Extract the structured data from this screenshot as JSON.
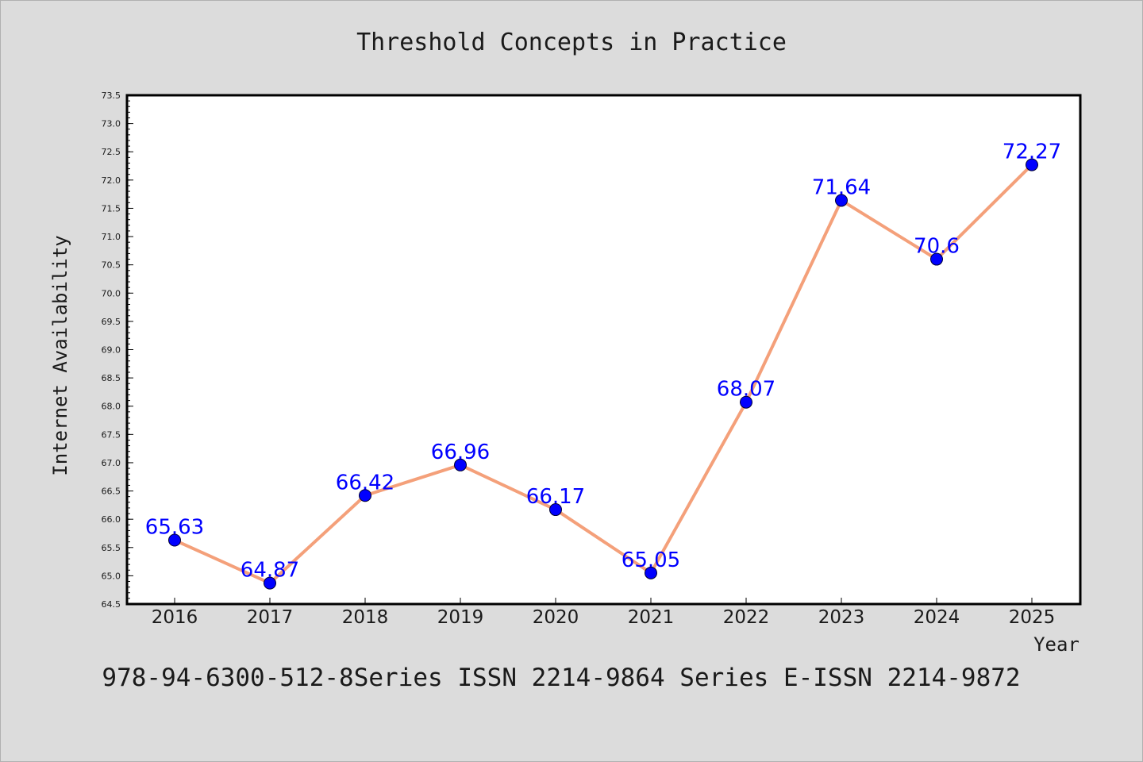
{
  "chart_data": {
    "type": "line",
    "title": "Threshold Concepts in Practice",
    "xlabel": "Year",
    "ylabel": "Internet Availability",
    "categories": [
      "2016",
      "2017",
      "2018",
      "2019",
      "2020",
      "2021",
      "2022",
      "2023",
      "2024",
      "2025"
    ],
    "series": [
      {
        "values": [
          65.63,
          64.87,
          66.42,
          66.96,
          66.17,
          65.05,
          68.07,
          71.64,
          70.6,
          72.27
        ],
        "labels": [
          "65.63",
          "64.87",
          "66.42",
          "66.96",
          "66.17",
          "65.05",
          "68.07",
          "71.64",
          "70.6",
          "72.27"
        ],
        "line_color": "#f4a07a",
        "marker_color": "#0000ff"
      }
    ],
    "ylim": [
      64.5,
      73.5
    ],
    "yticks": [
      "64.5",
      "65.0",
      "65.5",
      "66.0",
      "66.5",
      "67.0",
      "67.5",
      "68.0",
      "68.5",
      "69.0",
      "69.5",
      "70.0",
      "70.5",
      "71.0",
      "71.5",
      "72.0",
      "72.5",
      "73.0",
      "73.5"
    ],
    "grid": false,
    "legend": "none"
  },
  "footer": {
    "text": "978-94-6300-512-8Series ISSN 2214-9864 Series E-ISSN 2214-9872"
  },
  "colors": {
    "background": "#dcdcdc",
    "plot_area": "#ffffff",
    "label": "#0000ff"
  }
}
